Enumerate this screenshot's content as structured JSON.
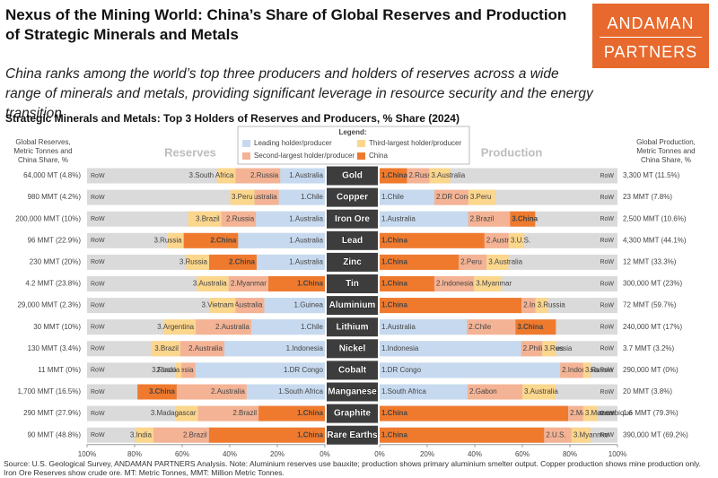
{
  "chart_data": {
    "type": "bar",
    "title": "Nexus of the Mining World: China’s Share of Global Reserves and Production of Strategic Minerals and Metals",
    "subtitle": "China ranks among the world’s top three producers and holders of reserves across a wide range of minerals and metals, providing significant leverage in resource security and the energy transition",
    "chart_title": "Strategic Minerals and Metals: Top 3 Holders of Reserves and Producers, % Share (2024)",
    "logo": [
      "ANDAMAN",
      "PARTNERS"
    ],
    "legend_title": "Legend:",
    "legend": [
      {
        "name": "Leading holder/producer",
        "color": "#c6d9ef"
      },
      {
        "name": "Second-largest holder/producer",
        "color": "#f4b395"
      },
      {
        "name": "Third-largest holder/producer",
        "color": "#fbd68d"
      },
      {
        "name": "China",
        "color": "#ef7a2e"
      }
    ],
    "track_color": "#dadada",
    "reserves_heading": "Reserves",
    "production_heading": "Production",
    "reserves_total_heading": [
      "Global Reserves,",
      "Metric Tonnes and",
      "China Share, %"
    ],
    "production_total_heading": [
      "Global Production,",
      "Metric Tonnes and",
      "China Share, %"
    ],
    "row_label": "RoW",
    "xlim": [
      0,
      100
    ],
    "xticks": [
      {
        "value": 100,
        "label": "100%"
      },
      {
        "value": 80,
        "label": "80%"
      },
      {
        "value": 60,
        "label": "60%"
      },
      {
        "value": 40,
        "label": "40%"
      },
      {
        "value": 20,
        "label": "20%"
      },
      {
        "value": 0,
        "label": "0%"
      }
    ],
    "minerals": [
      {
        "name": "Gold",
        "reserves_total": "64,000 MT (4.8%)",
        "production_total": "3,300 MT (11.5%)",
        "reserves": [
          {
            "label": "1.Australia",
            "value": 18.8
          },
          {
            "label": "2.Russia",
            "value": 18.8
          },
          {
            "label": "3.South Africa",
            "value": 7.8
          }
        ],
        "production": [
          {
            "label": "1.China",
            "value": 11.5
          },
          {
            "label": "2.Russia",
            "value": 9.4
          },
          {
            "label": "3.Australia",
            "value": 8.8
          }
        ]
      },
      {
        "name": "Copper",
        "reserves_total": "980 MMT (4.2%)",
        "production_total": "23 MMT (7.8%)",
        "reserves": [
          {
            "label": "1.Chile",
            "value": 19.4
          },
          {
            "label": "2.Australia",
            "value": 10.2
          },
          {
            "label": "3.Peru",
            "value": 10.2
          }
        ],
        "production": [
          {
            "label": "1.Chile",
            "value": 23
          },
          {
            "label": "2.DR Congo",
            "value": 14.3
          },
          {
            "label": "3.Peru",
            "value": 11.3
          }
        ]
      },
      {
        "name": "Iron Ore",
        "reserves_total": "200,000 MMT (10%)",
        "production_total": "2,500 MMT (10.6%)",
        "reserves": [
          {
            "label": "1.Australia",
            "value": 29
          },
          {
            "label": "2.Russia",
            "value": 14.5
          },
          {
            "label": "3.Brazil",
            "value": 14
          }
        ],
        "production": [
          {
            "label": "1.Australia",
            "value": 37.2
          },
          {
            "label": "2.Brazil",
            "value": 17.6
          },
          {
            "label": "3.China",
            "value": 10.6
          }
        ]
      },
      {
        "name": "Lead",
        "reserves_total": "96 MMT (22.9%)",
        "production_total": "4,300 MMT (44.1%)",
        "reserves": [
          {
            "label": "1.Australia",
            "value": 36.5
          },
          {
            "label": "2.China",
            "value": 22.9
          },
          {
            "label": "3.Russia",
            "value": 6.7
          }
        ],
        "production": [
          {
            "label": "1.China",
            "value": 44.1
          },
          {
            "label": "2.Australia",
            "value": 10.2
          },
          {
            "label": "3.U.S.",
            "value": 6.5
          }
        ]
      },
      {
        "name": "Zinc",
        "reserves_total": "230 MMT (20%)",
        "production_total": "12 MMT (33.3%)",
        "reserves": [
          {
            "label": "1.Australia",
            "value": 28.7
          },
          {
            "label": "2.China",
            "value": 20
          },
          {
            "label": "3.Russia",
            "value": 9.6
          }
        ],
        "production": [
          {
            "label": "1.China",
            "value": 33.3
          },
          {
            "label": "2.Peru",
            "value": 11.7
          },
          {
            "label": "3.Australia",
            "value": 9.2
          }
        ]
      },
      {
        "name": "Tin",
        "reserves_total": "4.2 MMT (23.8%)",
        "production_total": "300,000 MT (23%)",
        "reserves": [
          {
            "label": "1.China",
            "value": 23.8
          },
          {
            "label": "2.Myanmar",
            "value": 16.7
          },
          {
            "label": "3.Australia",
            "value": 13.3
          }
        ],
        "production": [
          {
            "label": "1.China",
            "value": 23
          },
          {
            "label": "2.Indonesia",
            "value": 16.7
          },
          {
            "label": "3.Myanmar",
            "value": 11.3
          }
        ]
      },
      {
        "name": "Aluminium",
        "reserves_total": "29,000 MMT (2.3%)",
        "production_total": "72 MMT (59.7%)",
        "reserves": [
          {
            "label": "1.Guinea",
            "value": 25.5
          },
          {
            "label": "2.Australia",
            "value": 12.1
          },
          {
            "label": "3.Vietnam",
            "value": 10.7
          }
        ],
        "production": [
          {
            "label": "1.China",
            "value": 59.7
          },
          {
            "label": "2.India",
            "value": 5.8
          },
          {
            "label": "3.Russia",
            "value": 5.3
          }
        ]
      },
      {
        "name": "Lithium",
        "reserves_total": "30 MMT (10%)",
        "production_total": "240,000 MT (17%)",
        "reserves": [
          {
            "label": "1.Chile",
            "value": 31
          },
          {
            "label": "2.Australia",
            "value": 23.3
          },
          {
            "label": "3.Argentina",
            "value": 13.3
          }
        ],
        "production": [
          {
            "label": "1.Australia",
            "value": 36.7
          },
          {
            "label": "2.Chile",
            "value": 20.4
          },
          {
            "label": "3.China",
            "value": 17
          }
        ]
      },
      {
        "name": "Nickel",
        "reserves_total": "130 MMT (3.4%)",
        "production_total": "3.7 MMT (3.2%)",
        "reserves": [
          {
            "label": "1.Indonesia",
            "value": 42.3
          },
          {
            "label": "2.Australia",
            "value": 18.5
          },
          {
            "label": "3.Brazil",
            "value": 12.3
          }
        ],
        "production": [
          {
            "label": "1.Indonesia",
            "value": 59.5
          },
          {
            "label": "2.Philippines",
            "value": 8.9
          },
          {
            "label": "3.Russia",
            "value": 5.7
          }
        ]
      },
      {
        "name": "Cobalt",
        "reserves_total": "11 MMT (0%)",
        "production_total": "290,000 MT (0%)",
        "reserves": [
          {
            "label": "1.DR Congo",
            "value": 54.5
          },
          {
            "label": "2.Indonesia",
            "value": 5.8
          },
          {
            "label": "3.Russia",
            "value": 2.3
          }
        ],
        "production": [
          {
            "label": "1.DR Congo",
            "value": 75.9
          },
          {
            "label": "2.Indonesia",
            "value": 9.7
          },
          {
            "label": "3.Russia",
            "value": 3
          }
        ]
      },
      {
        "name": "Manganese",
        "reserves_total": "1,700 MMT (16.5%)",
        "production_total": "20 MMT (3.8%)",
        "reserves": [
          {
            "label": "1.South Africa",
            "value": 32.9
          },
          {
            "label": "2.Australia",
            "value": 29.4
          },
          {
            "label": "3.China",
            "value": 16.5
          }
        ],
        "production": [
          {
            "label": "1.South Africa",
            "value": 37
          },
          {
            "label": "2.Gabon",
            "value": 23
          },
          {
            "label": "3.Australia",
            "value": 14
          }
        ]
      },
      {
        "name": "Graphite",
        "reserves_total": "290 MMT (27.9%)",
        "production_total": "1.6 MMT (79.3%)",
        "reserves": [
          {
            "label": "1.China",
            "value": 27.9
          },
          {
            "label": "2.Brazil",
            "value": 25.5
          },
          {
            "label": "3.Madagascar",
            "value": 9.3
          }
        ],
        "production": [
          {
            "label": "1.China",
            "value": 79.3
          },
          {
            "label": "2.Madagascar",
            "value": 6.3
          },
          {
            "label": "3.Mozambique",
            "value": 6
          }
        ]
      },
      {
        "name": "Rare Earths",
        "reserves_total": "90 MMT (48.8%)",
        "production_total": "390,000 MT (69.2%)",
        "reserves": [
          {
            "label": "1.China",
            "value": 48.8
          },
          {
            "label": "2.Brazil",
            "value": 23.3
          },
          {
            "label": "3.India",
            "value": 7.7
          }
        ],
        "production": [
          {
            "label": "1.China",
            "value": 69.2
          },
          {
            "label": "2.U.S.",
            "value": 11.5
          },
          {
            "label": "3.Myanmar",
            "value": 7.9
          }
        ]
      }
    ],
    "source": "Source: U.S. Geological Survey, ANDAMAN PARTNERS Analysis. Note: Aluminium reserves use bauxite; production shows primary aluminium smelter output. Copper production shows mine production only. Iron Ore Reserves show crude ore. MT: Metric Tonnes, MMT: Million Metric Tonnes."
  }
}
